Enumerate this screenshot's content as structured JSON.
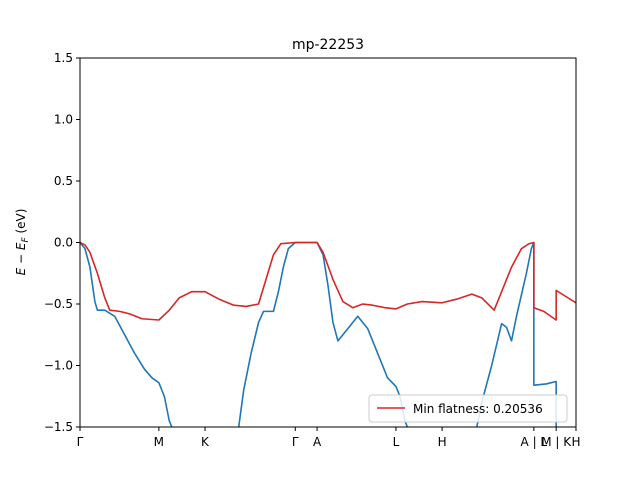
{
  "chart_data": {
    "type": "line",
    "title": "mp-22253",
    "ylabel": "E − E_F (eV)",
    "ylabel_main": "E − E",
    "ylabel_sub": "F",
    "ylabel_unit": " (eV)",
    "xlabel": "",
    "ylim": [
      -1.5,
      1.5
    ],
    "xlim": [
      0,
      1
    ],
    "yticks": [
      -1.5,
      -1.0,
      -0.5,
      0.0,
      0.5,
      1.0,
      1.5
    ],
    "ytick_labels": [
      "−1.5",
      "−1.0",
      "−0.5",
      "0.0",
      "0.5",
      "1.0",
      "1.5"
    ],
    "grid": false,
    "legend_position": "lower-right",
    "kpoints": [
      {
        "label": "Γ",
        "x": 0.0
      },
      {
        "label": "M",
        "x": 0.159
      },
      {
        "label": "K",
        "x": 0.252
      },
      {
        "label": "Γ",
        "x": 0.434
      },
      {
        "label": "A",
        "x": 0.478
      },
      {
        "label": "L",
        "x": 0.637
      },
      {
        "label": "H",
        "x": 0.73
      },
      {
        "label": "A | L",
        "x": 0.915
      },
      {
        "label": "M | K",
        "x": 0.96
      },
      {
        "label": "H",
        "x": 1.0
      }
    ],
    "series": [
      {
        "name": "",
        "color": "#1f77b4",
        "segments": [
          [
            [
              0.0,
              0.0
            ],
            [
              0.01,
              -0.05
            ],
            [
              0.02,
              -0.2
            ],
            [
              0.03,
              -0.48
            ],
            [
              0.035,
              -0.55
            ],
            [
              0.05,
              -0.55
            ],
            [
              0.07,
              -0.6
            ],
            [
              0.09,
              -0.75
            ],
            [
              0.11,
              -0.9
            ],
            [
              0.13,
              -1.03
            ],
            [
              0.145,
              -1.1
            ],
            [
              0.159,
              -1.14
            ],
            [
              0.17,
              -1.25
            ],
            [
              0.18,
              -1.45
            ],
            [
              0.185,
              -1.5
            ]
          ],
          [
            [
              0.32,
              -1.5
            ],
            [
              0.33,
              -1.2
            ],
            [
              0.345,
              -0.9
            ],
            [
              0.36,
              -0.65
            ],
            [
              0.37,
              -0.56
            ],
            [
              0.39,
              -0.56
            ],
            [
              0.4,
              -0.4
            ],
            [
              0.41,
              -0.2
            ],
            [
              0.42,
              -0.05
            ],
            [
              0.434,
              0.0
            ],
            [
              0.478,
              0.0
            ],
            [
              0.49,
              -0.1
            ],
            [
              0.5,
              -0.35
            ],
            [
              0.51,
              -0.65
            ],
            [
              0.52,
              -0.8
            ],
            [
              0.54,
              -0.7
            ],
            [
              0.56,
              -0.6
            ],
            [
              0.58,
              -0.7
            ],
            [
              0.6,
              -0.9
            ],
            [
              0.62,
              -1.1
            ],
            [
              0.637,
              -1.17
            ],
            [
              0.645,
              -1.25
            ],
            [
              0.655,
              -1.45
            ],
            [
              0.66,
              -1.5
            ]
          ],
          [
            [
              0.8,
              -1.5
            ],
            [
              0.81,
              -1.3
            ],
            [
              0.83,
              -1.0
            ],
            [
              0.85,
              -0.66
            ],
            [
              0.86,
              -0.69
            ],
            [
              0.87,
              -0.8
            ],
            [
              0.88,
              -0.6
            ],
            [
              0.9,
              -0.25
            ],
            [
              0.91,
              -0.05
            ],
            [
              0.915,
              0.0
            ]
          ],
          [
            [
              0.915,
              0.0
            ],
            [
              0.915,
              -1.16
            ],
            [
              0.94,
              -1.15
            ],
            [
              0.96,
              -1.13
            ],
            [
              0.96,
              -1.5
            ]
          ]
        ]
      },
      {
        "name": "Min flatness: 0.20536",
        "color": "#d62728",
        "segments": [
          [
            [
              0.0,
              0.0
            ],
            [
              0.01,
              -0.02
            ],
            [
              0.02,
              -0.08
            ],
            [
              0.035,
              -0.25
            ],
            [
              0.05,
              -0.45
            ],
            [
              0.06,
              -0.55
            ],
            [
              0.08,
              -0.56
            ],
            [
              0.1,
              -0.58
            ],
            [
              0.125,
              -0.62
            ],
            [
              0.159,
              -0.63
            ],
            [
              0.18,
              -0.55
            ],
            [
              0.2,
              -0.45
            ],
            [
              0.225,
              -0.4
            ],
            [
              0.252,
              -0.4
            ],
            [
              0.28,
              -0.46
            ],
            [
              0.31,
              -0.51
            ],
            [
              0.335,
              -0.52
            ],
            [
              0.36,
              -0.5
            ],
            [
              0.375,
              -0.3
            ],
            [
              0.39,
              -0.1
            ],
            [
              0.405,
              -0.01
            ],
            [
              0.434,
              0.0
            ],
            [
              0.478,
              0.0
            ],
            [
              0.49,
              -0.08
            ],
            [
              0.51,
              -0.3
            ],
            [
              0.53,
              -0.48
            ],
            [
              0.55,
              -0.53
            ],
            [
              0.57,
              -0.5
            ],
            [
              0.59,
              -0.51
            ],
            [
              0.615,
              -0.53
            ],
            [
              0.637,
              -0.54
            ],
            [
              0.66,
              -0.5
            ],
            [
              0.69,
              -0.48
            ],
            [
              0.73,
              -0.49
            ],
            [
              0.76,
              -0.46
            ],
            [
              0.79,
              -0.42
            ],
            [
              0.81,
              -0.45
            ],
            [
              0.835,
              -0.55
            ],
            [
              0.85,
              -0.4
            ],
            [
              0.87,
              -0.2
            ],
            [
              0.89,
              -0.05
            ],
            [
              0.905,
              -0.01
            ],
            [
              0.915,
              0.0
            ],
            [
              0.915,
              -0.53
            ],
            [
              0.935,
              -0.56
            ],
            [
              0.96,
              -0.63
            ],
            [
              0.96,
              -0.39
            ],
            [
              0.98,
              -0.44
            ],
            [
              1.0,
              -0.49
            ]
          ]
        ]
      }
    ]
  }
}
